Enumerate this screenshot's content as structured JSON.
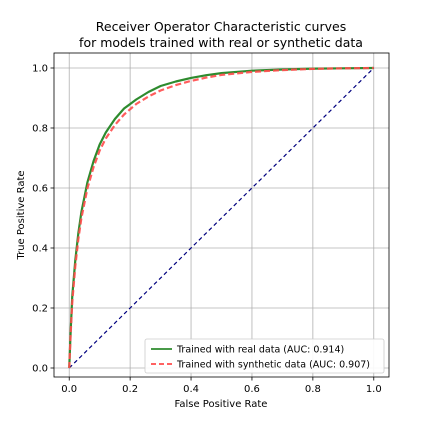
{
  "chart_data": {
    "type": "line",
    "title_line1": "Receiver Operator Characteristic curves",
    "title_line2": "for models trained with real or synthetic data",
    "xlabel": "False Positive Rate",
    "ylabel": "True Positive Rate",
    "xlim": [
      -0.05,
      1.05
    ],
    "ylim": [
      -0.03,
      1.05
    ],
    "xticks": [
      0.0,
      0.2,
      0.4,
      0.6,
      0.8,
      1.0
    ],
    "yticks": [
      0.0,
      0.2,
      0.4,
      0.6,
      0.8,
      1.0
    ],
    "xtick_labels": [
      "0.0",
      "0.2",
      "0.4",
      "0.6",
      "0.8",
      "1.0"
    ],
    "ytick_labels": [
      "0.0",
      "0.2",
      "0.4",
      "0.6",
      "0.8",
      "1.0"
    ],
    "grid": true,
    "legend_position": "lower-right",
    "series": [
      {
        "name": "Trained with real data (AUC: 0.914)",
        "color": "#2e8b2e",
        "style": "solid",
        "x": [
          0.0,
          0.005,
          0.01,
          0.02,
          0.03,
          0.04,
          0.05,
          0.06,
          0.08,
          0.1,
          0.12,
          0.15,
          0.18,
          0.22,
          0.26,
          0.3,
          0.35,
          0.4,
          0.45,
          0.5,
          0.6,
          0.7,
          0.8,
          0.9,
          1.0
        ],
        "y": [
          0.0,
          0.13,
          0.24,
          0.36,
          0.45,
          0.52,
          0.57,
          0.62,
          0.69,
          0.745,
          0.785,
          0.83,
          0.865,
          0.895,
          0.92,
          0.94,
          0.955,
          0.967,
          0.976,
          0.983,
          0.991,
          0.995,
          0.998,
          0.999,
          1.0
        ]
      },
      {
        "name": "Trained with synthetic data (AUC: 0.907)",
        "color": "#ff4b4b",
        "style": "dashed",
        "x": [
          0.0,
          0.005,
          0.01,
          0.02,
          0.03,
          0.04,
          0.05,
          0.06,
          0.08,
          0.1,
          0.12,
          0.15,
          0.18,
          0.22,
          0.26,
          0.3,
          0.35,
          0.4,
          0.45,
          0.5,
          0.6,
          0.7,
          0.8,
          0.9,
          1.0
        ],
        "y": [
          0.0,
          0.12,
          0.22,
          0.34,
          0.43,
          0.5,
          0.55,
          0.6,
          0.67,
          0.725,
          0.765,
          0.81,
          0.845,
          0.88,
          0.905,
          0.925,
          0.943,
          0.957,
          0.968,
          0.977,
          0.987,
          0.993,
          0.997,
          0.999,
          1.0
        ]
      },
      {
        "name": "",
        "color": "#00007f",
        "style": "dashed",
        "x": [
          0.0,
          1.0
        ],
        "y": [
          0.0,
          1.0
        ]
      }
    ]
  }
}
